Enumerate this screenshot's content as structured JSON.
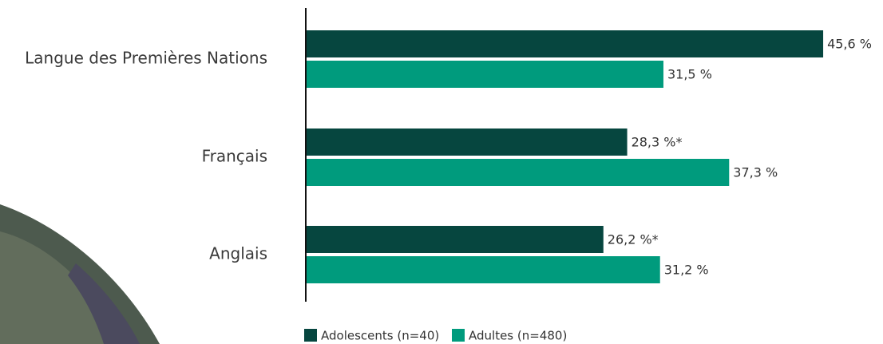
{
  "chart_data": {
    "type": "bar",
    "orientation": "horizontal",
    "categories": [
      "Langue des Premières Nations",
      "Français",
      "Anglais"
    ],
    "series": [
      {
        "name": "Adolescents (n=40)",
        "color": "#06463f",
        "values": [
          45.6,
          28.3,
          26.2
        ],
        "value_labels": [
          "45,6 %",
          "28,3 %*",
          "26,2 %*"
        ]
      },
      {
        "name": "Adultes (n=480)",
        "color": "#009b7d",
        "values": [
          31.5,
          37.3,
          31.2
        ],
        "value_labels": [
          "31,5 %",
          "37,3 %",
          "31,2 %"
        ]
      }
    ]
  }
}
